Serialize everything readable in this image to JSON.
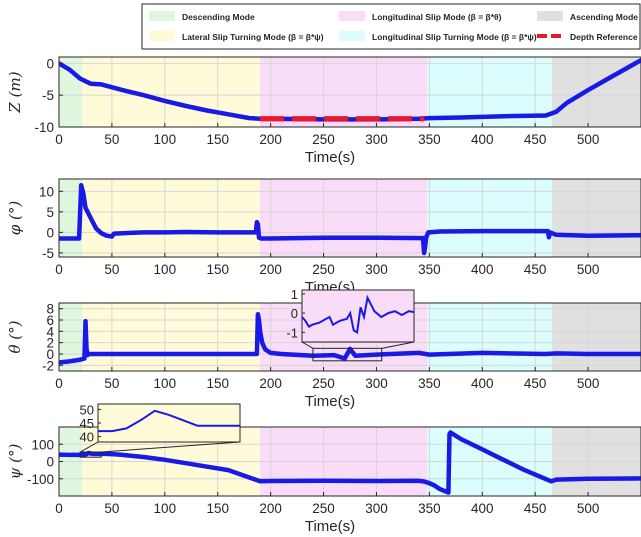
{
  "legend": [
    {
      "label": "Descending Mode",
      "color": "#dff6df",
      "type": "patch"
    },
    {
      "label": "Longitudinal Slip Mode (β = β*θ)",
      "color": "#f8dcf8",
      "type": "patch"
    },
    {
      "label": "Ascending Mode",
      "color": "#e0e0e0",
      "type": "patch"
    },
    {
      "label": "Lateral Slip Turning Mode (β = β*ψ)",
      "color": "#fffbd9",
      "type": "patch"
    },
    {
      "label": "Longitudinal Slip Turning Mode (β = β*ψ)",
      "color": "#dbfdfd",
      "type": "patch"
    },
    {
      "label": "Depth Reference",
      "color": "#e8192c",
      "type": "dash"
    }
  ],
  "chart_data": [
    {
      "type": "line",
      "xlabel": "Time(s)",
      "ylabel": "Z (m)",
      "xlim": [
        0,
        550
      ],
      "ylim": [
        -10,
        1
      ],
      "xticks": [
        0,
        50,
        100,
        150,
        200,
        250,
        300,
        350,
        400,
        450,
        500
      ],
      "yticks": [
        0,
        -5,
        -10
      ],
      "modes": [
        {
          "name": "Descending Mode",
          "x_range": [
            0,
            22
          ],
          "color": "#dff6df"
        },
        {
          "name": "Lateral Slip Turning Mode",
          "x_range": [
            22,
            190
          ],
          "color": "#fffbd9"
        },
        {
          "name": "Longitudinal Slip Mode",
          "x_range": [
            190,
            348
          ],
          "color": "#f8dcf8"
        },
        {
          "name": "Longitudinal Slip Turning Mode",
          "x_range": [
            348,
            466
          ],
          "color": "#dbfdfd"
        },
        {
          "name": "Ascending Mode",
          "x_range": [
            466,
            550
          ],
          "color": "#e0e0e0"
        }
      ],
      "series": [
        {
          "x": [
            0,
            10,
            20,
            30,
            40,
            60,
            80,
            100,
            120,
            140,
            160,
            180,
            190,
            200,
            250,
            300,
            340,
            350,
            380,
            420,
            460,
            470,
            480,
            500,
            520,
            550
          ],
          "y": [
            0,
            -1.0,
            -2.4,
            -3.2,
            -3.3,
            -4.2,
            -5.0,
            -5.9,
            -6.7,
            -7.4,
            -8.0,
            -8.6,
            -8.7,
            -8.7,
            -8.8,
            -8.8,
            -8.7,
            -8.6,
            -8.5,
            -8.3,
            -8.2,
            -7.6,
            -6.2,
            -4.2,
            -2.3,
            0.5
          ]
        },
        {
          "name": "Depth Reference",
          "x": [
            190,
            345
          ],
          "y": [
            -8.7,
            -8.7
          ],
          "dashed": true
        }
      ]
    },
    {
      "type": "line",
      "xlabel": "Time(s)",
      "ylabel": "φ (°)",
      "xlim": [
        0,
        550
      ],
      "ylim": [
        -6,
        13
      ],
      "xticks": [
        0,
        50,
        100,
        150,
        200,
        250,
        300,
        350,
        400,
        450,
        500
      ],
      "yticks": [
        10,
        5,
        0,
        -5
      ],
      "series": [
        {
          "x": [
            0,
            10,
            19,
            21,
            23,
            25,
            30,
            35,
            40,
            45,
            50,
            52,
            60,
            80,
            100,
            120,
            150,
            186,
            187,
            188,
            189,
            191,
            200,
            250,
            300,
            344,
            345,
            346,
            347,
            349,
            360,
            400,
            462,
            463,
            464,
            470,
            500,
            550
          ],
          "y": [
            -1.5,
            -1.5,
            -1.5,
            11.5,
            9.5,
            6,
            3.5,
            1,
            -0.2,
            -0.8,
            -1,
            -0.3,
            -0.2,
            0,
            0,
            0.1,
            0,
            0,
            2.5,
            2,
            -1.3,
            -1.5,
            -1.5,
            -1.3,
            -1.3,
            -1.4,
            -5,
            -3.5,
            -1.2,
            0,
            0.2,
            0.3,
            0.3,
            -1.2,
            0,
            -0.6,
            -0.8,
            -0.7
          ]
        }
      ]
    },
    {
      "type": "line",
      "xlabel": "Time(s)",
      "ylabel": "θ (°)",
      "xlim": [
        0,
        550
      ],
      "ylim": [
        -3,
        9
      ],
      "xticks": [
        0,
        50,
        100,
        150,
        200,
        250,
        300,
        350,
        400,
        450,
        500
      ],
      "yticks": [
        8,
        6,
        4,
        2,
        0,
        -2
      ],
      "series": [
        {
          "x": [
            0,
            10,
            20,
            24,
            25,
            26,
            27,
            28,
            40,
            100,
            150,
            187,
            188,
            189,
            190,
            192,
            195,
            200,
            210,
            240,
            260,
            270,
            275,
            280,
            300,
            340,
            350,
            400,
            460,
            470,
            500,
            550
          ],
          "y": [
            -1.5,
            -1.3,
            -1,
            -0.8,
            5.8,
            1,
            -0.2,
            0,
            0,
            0,
            0,
            0,
            7,
            6,
            4,
            2,
            0.8,
            0.2,
            0,
            -0.3,
            -0.2,
            -0.8,
            0.9,
            -0.3,
            -0.1,
            0.2,
            -0.1,
            0.2,
            0,
            0.1,
            0,
            0
          ]
        }
      ],
      "inset": {
        "x_range": [
          240,
          305
        ],
        "yticks": [
          1,
          0,
          -1
        ],
        "ylim": [
          -1.5,
          1.2
        ],
        "x": [
          240,
          242,
          244,
          246,
          250,
          254,
          256,
          258,
          262,
          266,
          268,
          270,
          272,
          274,
          276,
          278,
          282,
          286,
          290,
          294,
          298,
          302,
          305
        ],
        "y": [
          -0.2,
          -0.4,
          -0.7,
          -0.6,
          -0.5,
          -0.3,
          -0.2,
          -0.6,
          -0.4,
          -0.3,
          0,
          -0.9,
          -1.0,
          0.3,
          -0.2,
          0.8,
          0.1,
          -0.2,
          0,
          0.1,
          -0.1,
          0.1,
          0.05
        ]
      }
    },
    {
      "type": "line",
      "xlabel": "Time(s)",
      "ylabel": "ψ (°)",
      "xlim": [
        0,
        550
      ],
      "ylim": [
        -200,
        200
      ],
      "xticks": [
        0,
        50,
        100,
        150,
        200,
        250,
        300,
        350,
        400,
        450,
        500
      ],
      "yticks": [
        100,
        0,
        -100
      ],
      "series": [
        {
          "x": [
            0,
            10,
            20,
            25,
            28,
            32,
            40,
            50,
            60,
            80,
            100,
            120,
            140,
            160,
            190,
            200,
            250,
            300,
            340,
            345,
            350,
            355,
            360,
            368,
            369,
            370,
            380,
            400,
            420,
            440,
            465,
            470,
            500,
            550
          ],
          "y": [
            40,
            38,
            38,
            40,
            49,
            44,
            45,
            43,
            38,
            26,
            10,
            -10,
            -30,
            -50,
            -115,
            -113,
            -112,
            -113,
            -112,
            -116,
            -126,
            -140,
            -160,
            -180,
            160,
            168,
            130,
            70,
            10,
            -50,
            -115,
            -105,
            -100,
            -98
          ]
        }
      ],
      "inset": {
        "x_range": [
          20,
          40
        ],
        "yticks": [
          50,
          45,
          40
        ],
        "ylim": [
          38,
          52
        ],
        "x": [
          20,
          22,
          24,
          26,
          28,
          30,
          32,
          34,
          36,
          38,
          40
        ],
        "y": [
          42,
          42,
          43,
          46,
          49.5,
          48,
          46,
          44,
          44,
          44,
          44
        ]
      }
    }
  ]
}
